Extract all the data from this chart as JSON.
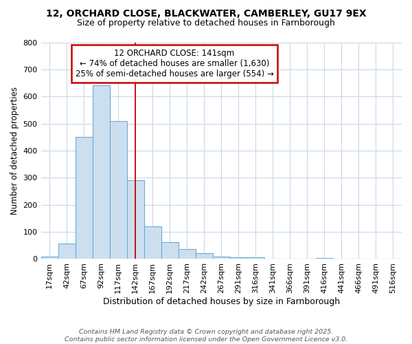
{
  "title_line1": "12, ORCHARD CLOSE, BLACKWATER, CAMBERLEY, GU17 9EX",
  "title_line2": "Size of property relative to detached houses in Farnborough",
  "xlabel": "Distribution of detached houses by size in Farnborough",
  "ylabel": "Number of detached properties",
  "categories": [
    "17sqm",
    "42sqm",
    "67sqm",
    "92sqm",
    "117sqm",
    "142sqm",
    "167sqm",
    "192sqm",
    "217sqm",
    "242sqm",
    "267sqm",
    "291sqm",
    "316sqm",
    "341sqm",
    "366sqm",
    "391sqm",
    "416sqm",
    "441sqm",
    "466sqm",
    "491sqm",
    "516sqm"
  ],
  "values": [
    10,
    57,
    450,
    640,
    510,
    290,
    120,
    62,
    37,
    22,
    10,
    7,
    6,
    0,
    0,
    0,
    4,
    0,
    0,
    0,
    0
  ],
  "bar_color": "#ccdff0",
  "bar_edge_color": "#6aaad4",
  "marker_index": 5,
  "marker_color": "#cc0000",
  "annotation_title": "12 ORCHARD CLOSE: 141sqm",
  "annotation_line1": "← 74% of detached houses are smaller (1,630)",
  "annotation_line2": "25% of semi-detached houses are larger (554) →",
  "annotation_box_color": "#ffffff",
  "annotation_box_edge_color": "#cc0000",
  "ylim": [
    0,
    800
  ],
  "yticks": [
    0,
    100,
    200,
    300,
    400,
    500,
    600,
    700,
    800
  ],
  "background_color": "#ffffff",
  "plot_bg_color": "#ffffff",
  "grid_color": "#c8d8e8",
  "footnote_line1": "Contains HM Land Registry data © Crown copyright and database right 2025.",
  "footnote_line2": "Contains public sector information licensed under the Open Government Licence v3.0."
}
